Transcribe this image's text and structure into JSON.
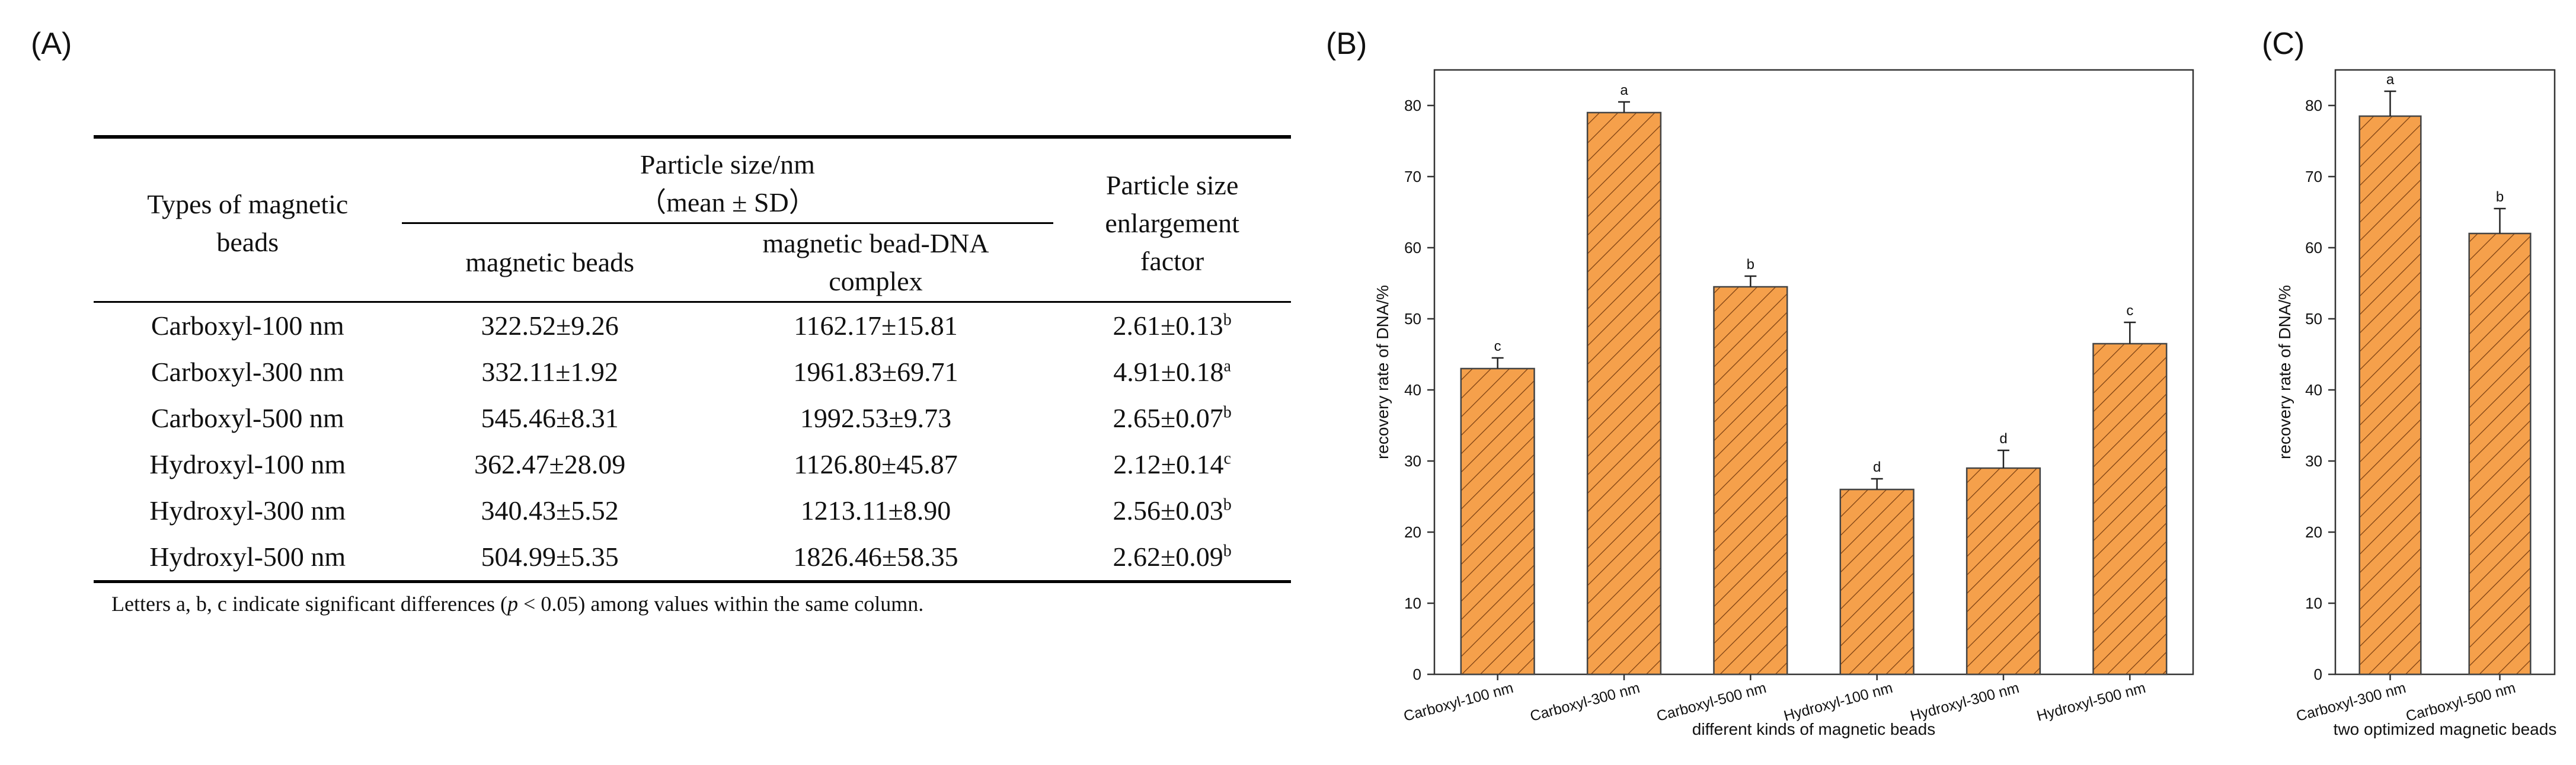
{
  "panel_labels": {
    "a": "(A)",
    "b": "(B)",
    "c": "(C)"
  },
  "table": {
    "header": {
      "col1": [
        "Types of magnetic",
        "beads"
      ],
      "group": [
        "Particle size/nm",
        "（mean ± SD）"
      ],
      "sub1": "magnetic beads",
      "sub2": [
        "magnetic bead-DNA",
        "complex"
      ],
      "col4": [
        "Particle size",
        "enlargement",
        "factor"
      ]
    },
    "rows": [
      {
        "type": "Carboxyl-100 nm",
        "beads": "322.52±9.26",
        "complex": "1162.17±15.81",
        "factor": "2.61±0.13",
        "sig": "b"
      },
      {
        "type": "Carboxyl-300 nm",
        "beads": "332.11±1.92",
        "complex": "1961.83±69.71",
        "factor": "4.91±0.18",
        "sig": "a"
      },
      {
        "type": "Carboxyl-500 nm",
        "beads": "545.46±8.31",
        "complex": "1992.53±9.73",
        "factor": "2.65±0.07",
        "sig": "b"
      },
      {
        "type": "Hydroxyl-100 nm",
        "beads": "362.47±28.09",
        "complex": "1126.80±45.87",
        "factor": "2.12±0.14",
        "sig": "c"
      },
      {
        "type": "Hydroxyl-300 nm",
        "beads": "340.43±5.52",
        "complex": "1213.11±8.90",
        "factor": "2.56±0.03",
        "sig": "b"
      },
      {
        "type": "Hydroxyl-500 nm",
        "beads": "504.99±5.35",
        "complex": "1826.46±58.35",
        "factor": "2.62±0.09",
        "sig": "b"
      }
    ],
    "note": {
      "before": "Letters a, b, c indicate significant differences (",
      "p": "p",
      "after": " < 0.05) among values within the same column."
    }
  },
  "chart_data": [
    {
      "type": "bar",
      "panel": "(B)",
      "categories": [
        "Carboxyl-100 nm",
        "Carboxyl-300 nm",
        "Carboxyl-500 nm",
        "Hydroxyl-100 nm",
        "Hydroxyl-300 nm",
        "Hydroxyl-500 nm"
      ],
      "values": [
        43.0,
        79.0,
        54.5,
        26.0,
        29.0,
        46.5
      ],
      "errors": [
        1.5,
        1.5,
        1.5,
        1.5,
        2.5,
        3.0
      ],
      "letters": [
        "c",
        "a",
        "b",
        "d",
        "d",
        "c"
      ],
      "xlabel": "different kinds of magnetic beads",
      "ylabel": "recovery rate of DNA/%",
      "ylim": [
        0,
        85
      ],
      "yticks": [
        0,
        10,
        20,
        30,
        40,
        50,
        60,
        70,
        80
      ],
      "bar_color": "#F5A04B",
      "hatch": true,
      "grid": false
    },
    {
      "type": "bar",
      "panel": "(C)",
      "categories": [
        "Carboxyl-300 nm",
        "Carboxyl-500 nm"
      ],
      "values": [
        78.5,
        62.0
      ],
      "errors": [
        3.5,
        3.5
      ],
      "letters": [
        "a",
        "b"
      ],
      "xlabel": "two optimized magnetic beads",
      "ylabel": "recovery rate of DNA/%",
      "ylim": [
        0,
        85
      ],
      "yticks": [
        0,
        10,
        20,
        30,
        40,
        50,
        60,
        70,
        80
      ],
      "bar_color": "#F5A04B",
      "hatch": true,
      "grid": false
    }
  ]
}
